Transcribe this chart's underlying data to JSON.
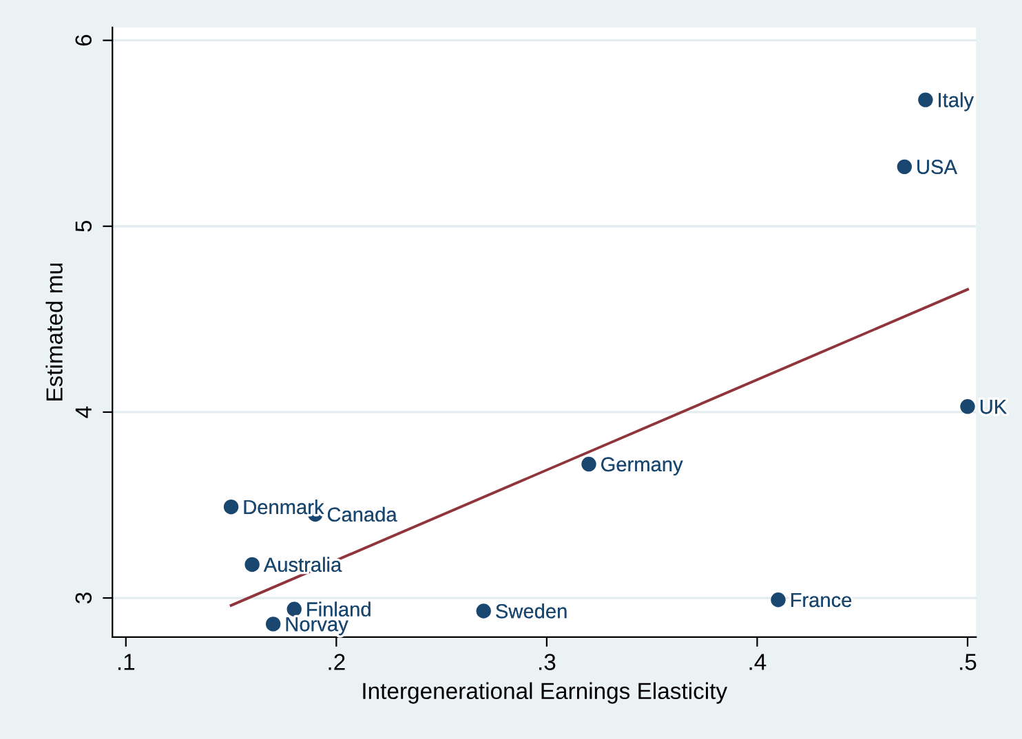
{
  "chart_data": {
    "type": "scatter",
    "xlabel": "Intergenerational Earnings Elasticity",
    "ylabel": "Estimated mu",
    "xlim": [
      0.0936,
      0.504
    ],
    "ylim": [
      2.79,
      6.07
    ],
    "xticks": [
      {
        "value": 0.1,
        "label": ".1"
      },
      {
        "value": 0.2,
        "label": ".2"
      },
      {
        "value": 0.3,
        "label": ".3"
      },
      {
        "value": 0.4,
        "label": ".4"
      },
      {
        "value": 0.5,
        "label": ".5"
      }
    ],
    "yticks": [
      3,
      4,
      5,
      6
    ],
    "grid": "y",
    "series": [
      {
        "color": "#1a476f",
        "marker": "circle",
        "x": [
          0.48,
          0.47,
          0.5,
          0.32,
          0.15,
          0.19,
          0.16,
          0.18,
          0.17,
          0.27,
          0.41
        ],
        "values": [
          5.68,
          5.32,
          4.03,
          3.72,
          3.49,
          3.45,
          3.18,
          2.94,
          2.86,
          2.93,
          2.99
        ]
      },
      {
        "type": "line",
        "color": "#90353b",
        "x": [
          0.15,
          0.5
        ],
        "values": [
          2.96,
          4.66
        ]
      }
    ],
    "annotations": [
      {
        "text": "Italy",
        "x": 0.48,
        "y": 5.68
      },
      {
        "text": "USA",
        "x": 0.47,
        "y": 5.32
      },
      {
        "text": "UK",
        "x": 0.5,
        "y": 4.03
      },
      {
        "text": "Germany",
        "x": 0.32,
        "y": 3.72
      },
      {
        "text": "Denmark",
        "x": 0.15,
        "y": 3.49
      },
      {
        "text": "Canada",
        "x": 0.19,
        "y": 3.45
      },
      {
        "text": "Australia",
        "x": 0.16,
        "y": 3.18
      },
      {
        "text": "Finland",
        "x": 0.18,
        "y": 2.94
      },
      {
        "text": "Norvay",
        "x": 0.17,
        "y": 2.86
      },
      {
        "text": "Sweden",
        "x": 0.27,
        "y": 2.93
      },
      {
        "text": "France",
        "x": 0.41,
        "y": 2.99
      }
    ]
  }
}
